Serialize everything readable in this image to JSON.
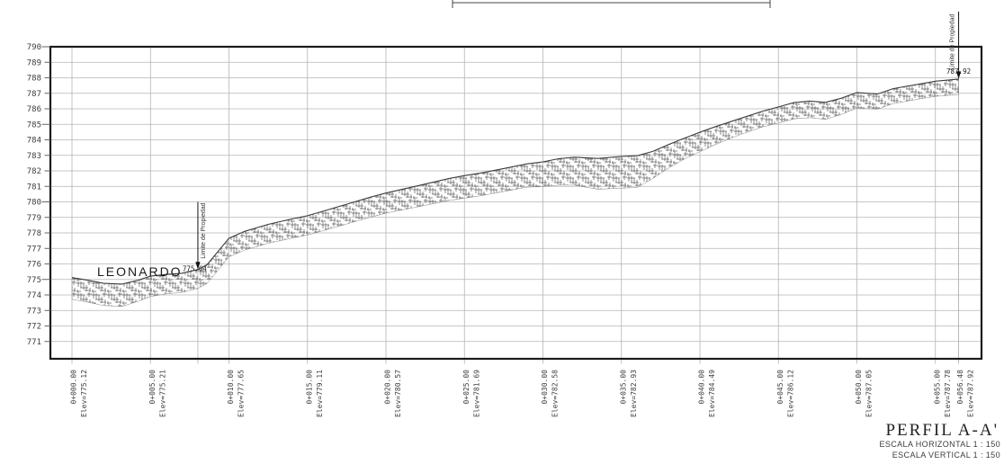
{
  "drawing": {
    "site_label": "LEONARDO"
  },
  "title_block": {
    "title": "PERFIL A-A'",
    "scale_horizontal": "ESCALA HORIZONTAL 1 : 150",
    "scale_vertical": "ESCALA VERTICAL 1 : 150"
  },
  "colors": {
    "grid": "#b4b4b4",
    "border": "#1b1b1b",
    "surface": "#3c3c3c",
    "hatch": "#5f5f5f",
    "tick": "#555555",
    "annotation": "#111111",
    "background": "#ffffff"
  },
  "chart_data": {
    "type": "line",
    "title": "PERFIL A-A'",
    "xlabel": "",
    "ylabel": "",
    "grid": true,
    "ylim": [
      771,
      790
    ],
    "xlim": [
      0,
      56.48
    ],
    "y_ticks": [
      790,
      789,
      788,
      787,
      786,
      785,
      784,
      783,
      782,
      781,
      780,
      779,
      778,
      777,
      776,
      775,
      774,
      773,
      772,
      771
    ],
    "stations": [
      {
        "km": 0,
        "station": "0+000.00",
        "elev_text": "Elev=775.12",
        "elev": 775.12
      },
      {
        "km": 5,
        "station": "0+005.00",
        "elev_text": "Elev=775.21",
        "elev": 775.21
      },
      {
        "km": 10,
        "station": "0+010.00",
        "elev_text": "Elev=777.65",
        "elev": 777.65
      },
      {
        "km": 15,
        "station": "0+015.00",
        "elev_text": "Elev=779.11",
        "elev": 779.11
      },
      {
        "km": 20,
        "station": "0+020.00",
        "elev_text": "Elev=780.57",
        "elev": 780.57
      },
      {
        "km": 25,
        "station": "0+025.00",
        "elev_text": "Elev=781.69",
        "elev": 781.69
      },
      {
        "km": 30,
        "station": "0+030.00",
        "elev_text": "Elev=782.58",
        "elev": 782.58
      },
      {
        "km": 35,
        "station": "0+035.00",
        "elev_text": "Elev=782.93",
        "elev": 782.93
      },
      {
        "km": 40,
        "station": "0+040.00",
        "elev_text": "Elev=784.49",
        "elev": 784.49
      },
      {
        "km": 45,
        "station": "0+045.00",
        "elev_text": "Elev=786.12",
        "elev": 786.12
      },
      {
        "km": 50,
        "station": "0+050.00",
        "elev_text": "Elev=787.05",
        "elev": 787.05
      },
      {
        "km": 55,
        "station": "0+055.00",
        "elev_text": "Elev=787.78",
        "elev": 787.78
      },
      {
        "km": 56.48,
        "station": "0+056.48",
        "elev_text": "Elev=787.92",
        "elev": 787.92
      }
    ],
    "surface_profile": [
      [
        0,
        775.12
      ],
      [
        1.0,
        774.95
      ],
      [
        2.0,
        774.75
      ],
      [
        3.2,
        774.7
      ],
      [
        4.2,
        774.95
      ],
      [
        5,
        775.21
      ],
      [
        6.0,
        775.32
      ],
      [
        7.0,
        775.4
      ],
      [
        8.02,
        775.64
      ],
      [
        8.6,
        775.95
      ],
      [
        9.3,
        776.8
      ],
      [
        10,
        777.65
      ],
      [
        11,
        778.1
      ],
      [
        12.5,
        778.55
      ],
      [
        14,
        778.9
      ],
      [
        15,
        779.11
      ],
      [
        16,
        779.4
      ],
      [
        17.5,
        779.85
      ],
      [
        19,
        780.3
      ],
      [
        20,
        780.57
      ],
      [
        21,
        780.8
      ],
      [
        22.5,
        781.15
      ],
      [
        24,
        781.5
      ],
      [
        25,
        781.69
      ],
      [
        26,
        781.85
      ],
      [
        27.5,
        782.15
      ],
      [
        29,
        782.45
      ],
      [
        30,
        782.58
      ],
      [
        31,
        782.78
      ],
      [
        32,
        782.88
      ],
      [
        33.5,
        782.8
      ],
      [
        35,
        782.93
      ],
      [
        36,
        782.98
      ],
      [
        37,
        783.25
      ],
      [
        38,
        783.7
      ],
      [
        39,
        784.1
      ],
      [
        40,
        784.49
      ],
      [
        41,
        784.85
      ],
      [
        42.5,
        785.35
      ],
      [
        44,
        785.85
      ],
      [
        45,
        786.12
      ],
      [
        46,
        786.4
      ],
      [
        47,
        786.5
      ],
      [
        48,
        786.42
      ],
      [
        49,
        786.68
      ],
      [
        50,
        787.05
      ],
      [
        51.3,
        786.95
      ],
      [
        52.3,
        787.3
      ],
      [
        54,
        787.6
      ],
      [
        55,
        787.78
      ],
      [
        56.48,
        787.92
      ]
    ],
    "band_thickness_keypoints": [
      [
        0,
        1.4
      ],
      [
        3,
        1.45
      ],
      [
        6,
        1.25
      ],
      [
        10,
        1.2
      ],
      [
        15,
        1.25
      ],
      [
        20,
        1.3
      ],
      [
        25,
        1.45
      ],
      [
        29,
        1.5
      ],
      [
        32,
        1.8
      ],
      [
        34,
        2.05
      ],
      [
        36,
        2.05
      ],
      [
        37.5,
        1.6
      ],
      [
        39,
        1.35
      ],
      [
        41,
        1.15
      ],
      [
        43,
        1.0
      ],
      [
        46,
        1.05
      ],
      [
        48,
        1.1
      ],
      [
        50,
        1.0
      ],
      [
        53,
        0.95
      ],
      [
        56.48,
        1.0
      ]
    ],
    "annotations": [
      {
        "label": "Limite de Propiedad",
        "value": "775.64",
        "km": 8.02,
        "elev": 775.64
      },
      {
        "label": "Limite de Propiedad",
        "value": "787.92",
        "km": 56.48,
        "elev": 787.92
      }
    ]
  }
}
